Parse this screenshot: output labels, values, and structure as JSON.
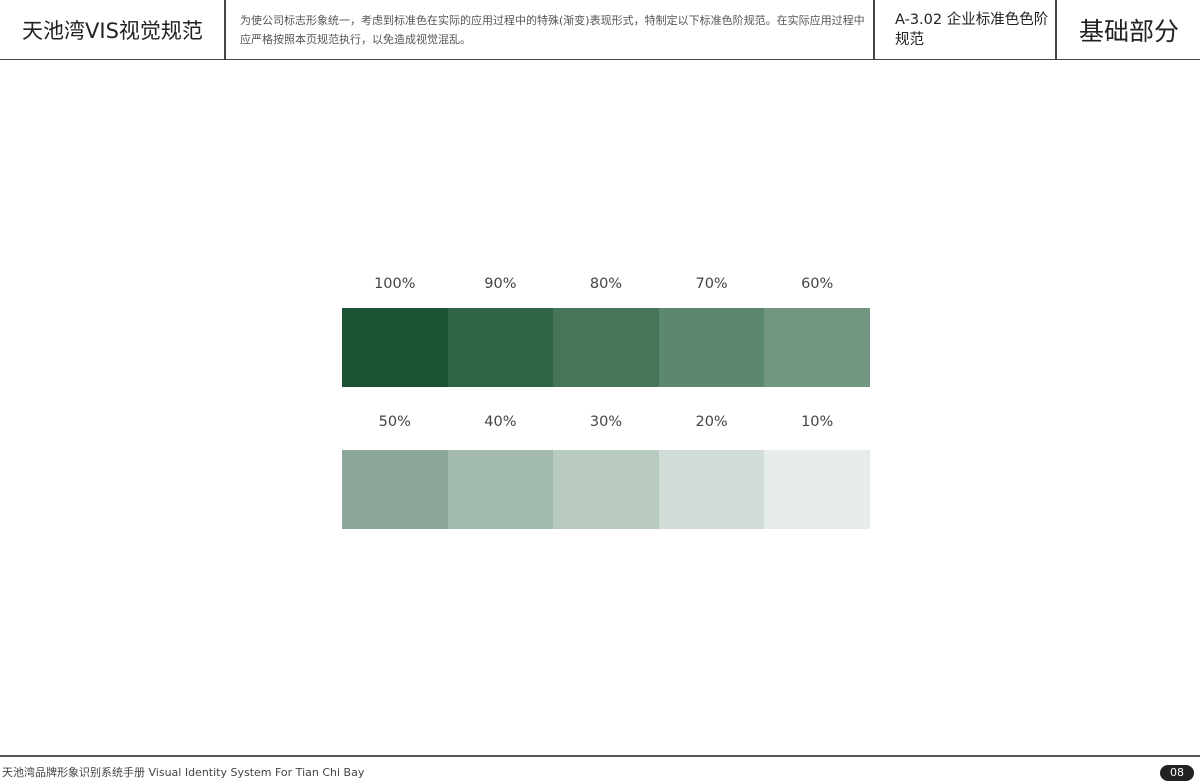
{
  "header": {
    "title": "天池湾VIS视觉规范",
    "description": "为使公司标志形象统一，考虑到标准色在实际的应用过程中的特殊(渐变)表现形式，特制定以下标准色阶规范。在实际应用过程中应严格按照本页规范执行，以免造成视觉混乱。",
    "code_title": "A-3.02  企业标准色色阶规范",
    "section": "基础部分"
  },
  "swatches": [
    {
      "label": "100%",
      "color": "#1a5232"
    },
    {
      "label": "90%",
      "color": "#306447"
    },
    {
      "label": "80%",
      "color": "#46755a"
    },
    {
      "label": "70%",
      "color": "#5d8870"
    },
    {
      "label": "60%",
      "color": "#739682"
    },
    {
      "label": "50%",
      "color": "#8ba898"
    },
    {
      "label": "40%",
      "color": "#a2bbad"
    },
    {
      "label": "30%",
      "color": "#b9cbc1"
    },
    {
      "label": "20%",
      "color": "#d1dcd6"
    },
    {
      "label": "10%",
      "color": "#e6ece8"
    }
  ],
  "footer": {
    "text": "天池湾品牌形象识别系统手册  Visual Identity System For Tian Chi Bay",
    "page": "08"
  }
}
